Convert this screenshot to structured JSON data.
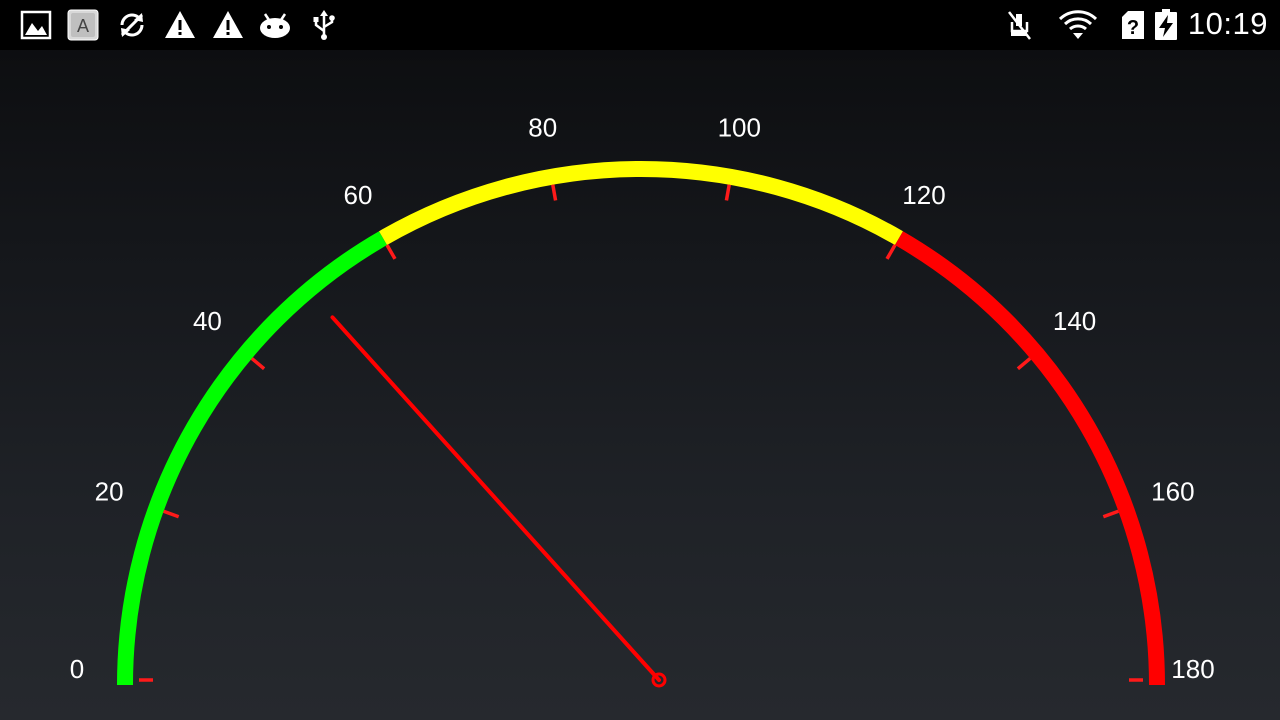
{
  "status_bar": {
    "time": "10:19",
    "left_icons": [
      "gallery-icon",
      "keyboard-a-icon",
      "sync-icon",
      "warning-icon",
      "warning-icon",
      "android-icon",
      "usb-icon"
    ],
    "right_icons": [
      "mute-icon",
      "wifi-icon",
      "sim-unknown-icon",
      "battery-charging-icon"
    ]
  },
  "gauge": {
    "min": 0,
    "max": 180,
    "value": 48,
    "tick_labels": [
      "0",
      "20",
      "40",
      "60",
      "80",
      "100",
      "120",
      "140",
      "160",
      "180"
    ],
    "zones": [
      {
        "from": 0,
        "to": 60,
        "color": "#00ff00"
      },
      {
        "from": 60,
        "to": 120,
        "color": "#ffff00"
      },
      {
        "from": 120,
        "to": 180,
        "color": "#ff0000"
      }
    ],
    "tick_color": "#ff1a1a",
    "needle_color": "#ff0000"
  }
}
